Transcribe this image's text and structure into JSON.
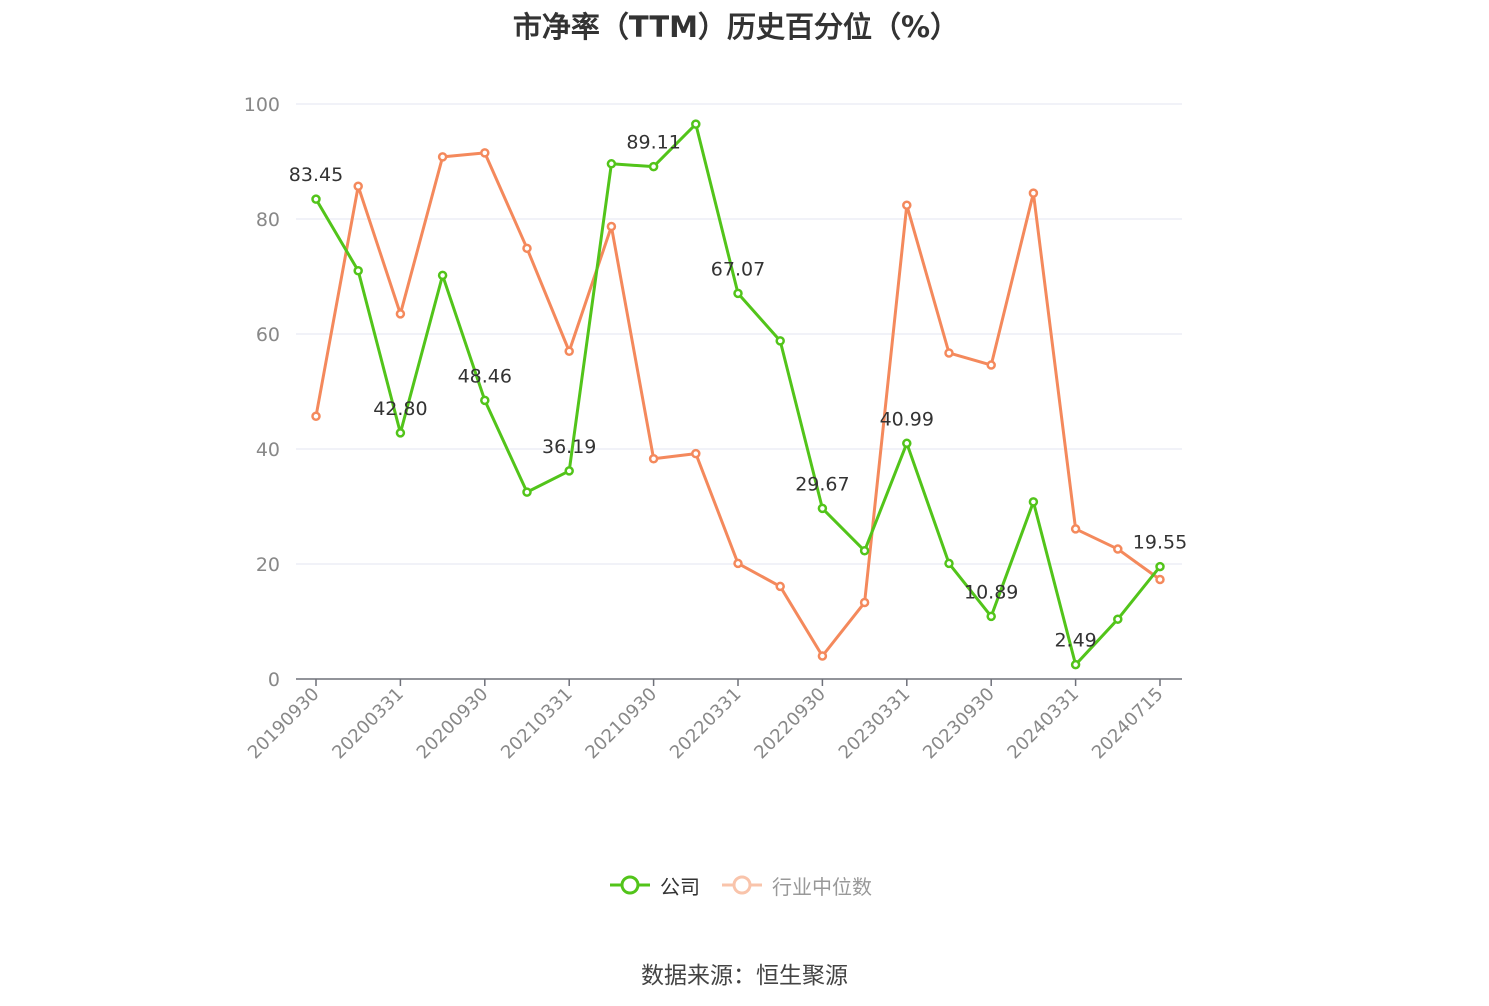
{
  "chart_data": {
    "type": "line",
    "title": "市净率（TTM）历史百分位（%）",
    "xlabel": "",
    "ylabel": "",
    "ylim": [
      0,
      100
    ],
    "yticks": [
      0,
      20,
      40,
      60,
      80,
      100
    ],
    "x": [
      "20190930",
      "20191231",
      "20200331",
      "20200630",
      "20200930",
      "20201231",
      "20210331",
      "20210630",
      "20210930",
      "20211231",
      "20220331",
      "20220630",
      "20220930",
      "20221231",
      "20230331",
      "20230630",
      "20230930",
      "20231231",
      "20240331",
      "20240630",
      "20240715"
    ],
    "xtick_labels": [
      "20190930",
      "20200331",
      "20200930",
      "20210331",
      "20210930",
      "20220331",
      "20220930",
      "20230331",
      "20230930",
      "20240331",
      "20240715"
    ],
    "grid": true,
    "legend_position": "bottom-center",
    "series": [
      {
        "name": "公司",
        "color": "#52c41a",
        "values": [
          83.45,
          71.0,
          42.8,
          70.2,
          48.46,
          32.5,
          36.19,
          89.6,
          89.11,
          96.5,
          67.07,
          58.8,
          29.67,
          22.3,
          40.99,
          20.1,
          10.89,
          30.8,
          2.49,
          10.4,
          19.55
        ],
        "data_labels": [
          "83.45",
          "",
          "42.80",
          "",
          "48.46",
          "",
          "36.19",
          "",
          "89.11",
          "",
          "67.07",
          "",
          "29.67",
          "",
          "40.99",
          "",
          "10.89",
          "",
          "2.49",
          "",
          "19.55"
        ]
      },
      {
        "name": "行业中位数",
        "color": "#f4895c",
        "values": [
          45.7,
          85.7,
          63.5,
          90.8,
          91.5,
          74.9,
          57.0,
          78.7,
          38.3,
          39.2,
          20.1,
          16.1,
          4.0,
          13.3,
          82.4,
          56.7,
          54.6,
          84.5,
          26.1,
          22.6,
          17.3
        ]
      }
    ]
  },
  "source_label": "数据来源：",
  "source_name": "恒生聚源"
}
